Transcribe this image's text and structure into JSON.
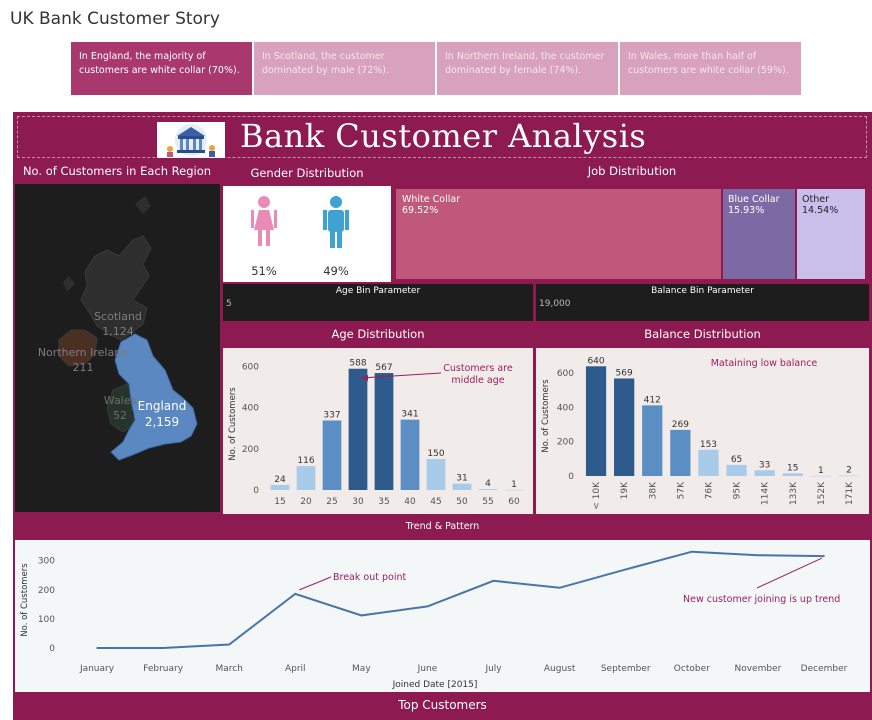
{
  "story": {
    "title": "UK Bank Customer Story",
    "points": [
      {
        "text": "In England, the majority of customers are white collar (70%).",
        "active": true
      },
      {
        "text": "In Scotland, the  customer dominated by male (72%).",
        "active": false
      },
      {
        "text": "In Northern Ireland, the  customer dominated by female (74%).",
        "active": false
      },
      {
        "text": "In Wales, more than half of customers are white collar (59%).",
        "active": false
      }
    ]
  },
  "dashboard": {
    "title": "Bank Customer Analysis",
    "logo_icon": "bank-building-icon",
    "colors": {
      "background": "#8e1a52",
      "bar_dark": "#2e5a8c",
      "bar_mid": "#5b8fc4",
      "bar_light": "#a7cbe8",
      "line": "#4a74a8"
    }
  },
  "region_map": {
    "title": "No. of Customers in Each Region",
    "regions": [
      {
        "name": "Scotland",
        "value": "1,124"
      },
      {
        "name": "Northern Ireland",
        "value": "211"
      },
      {
        "name": "Wales",
        "value": "52"
      },
      {
        "name": "England",
        "value": "2,159"
      }
    ]
  },
  "gender": {
    "title": "Gender Distribution",
    "female_pct": "51%",
    "male_pct": "49%",
    "female_icon": "female-person-icon",
    "male_icon": "male-person-icon"
  },
  "job": {
    "title": "Job Distribution",
    "segments": [
      {
        "label": "White Collar",
        "pct": "69.52%",
        "value": 69.52,
        "color": "#c0587b"
      },
      {
        "label": "Blue Collar",
        "pct": "15.93%",
        "value": 15.93,
        "color": "#7c6aa4"
      },
      {
        "label": "Other",
        "pct": "14.54%",
        "value": 14.54,
        "color": "#c8c0ea"
      }
    ]
  },
  "parameters": {
    "age_label": "Age Bin Parameter",
    "age_value": "5",
    "balance_label": "Balance Bin Parameter",
    "balance_value": "19,000"
  },
  "chart_data": [
    {
      "type": "bar",
      "title": "Age Distribution",
      "ylabel": "No. of Customers",
      "categories": [
        "15",
        "20",
        "25",
        "30",
        "35",
        "40",
        "45",
        "50",
        "55",
        "60"
      ],
      "values": [
        24,
        116,
        337,
        588,
        567,
        341,
        150,
        31,
        4,
        1
      ],
      "yticks": [
        0,
        200,
        400,
        600
      ],
      "ylim": [
        0,
        640
      ],
      "annotation": "Customers are middle age"
    },
    {
      "type": "bar",
      "title": "Balance Distribution",
      "ylabel": "No. of Customers",
      "categories": [
        "< 10K",
        "19K",
        "38K",
        "57K",
        "76K",
        "95K",
        "114K",
        "133K",
        "152K",
        "171K"
      ],
      "values": [
        640,
        569,
        412,
        269,
        153,
        65,
        33,
        15,
        1,
        2
      ],
      "yticks": [
        0,
        200,
        400,
        600
      ],
      "ylim": [
        0,
        700
      ],
      "annotation": "Mataining low balance"
    },
    {
      "type": "line",
      "title": "Trend & Pattern",
      "xlabel": "Joined Date [2015]",
      "ylabel": "No. of Customers",
      "x": [
        "January",
        "February",
        "March",
        "April",
        "May",
        "June",
        "July",
        "August",
        "September",
        "October",
        "November",
        "December"
      ],
      "values": [
        0,
        0,
        12,
        186,
        112,
        143,
        231,
        207,
        270,
        331,
        319,
        316
      ],
      "yticks": [
        0,
        100,
        200,
        300
      ],
      "ylim": [
        0,
        330
      ],
      "annotations": [
        "Break out point",
        "New customer joining is up trend"
      ]
    }
  ],
  "top_customers": {
    "title": "Top Customers"
  }
}
